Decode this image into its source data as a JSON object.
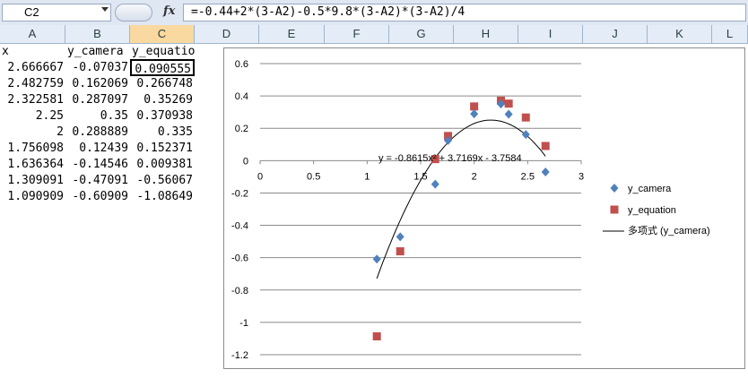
{
  "namebox": {
    "value": "C2"
  },
  "formula": {
    "text": "=-0.44+2*(3-A2)-0.5*9.8*(3-A2)*(3-A2)/4"
  },
  "columns": [
    "A",
    "B",
    "C",
    "D",
    "E",
    "F",
    "G",
    "H",
    "I",
    "J",
    "K",
    "L"
  ],
  "selected_column": "C",
  "headers": [
    "x",
    "y_camera",
    "y_equation"
  ],
  "rows": [
    [
      "2.666667",
      "-0.07037",
      "0.090555"
    ],
    [
      "2.482759",
      "0.162069",
      "0.266748"
    ],
    [
      "2.322581",
      "0.287097",
      "0.35269"
    ],
    [
      "2.25",
      "0.35",
      "0.370938"
    ],
    [
      "2",
      "0.288889",
      "0.335"
    ],
    [
      "1.756098",
      "0.12439",
      "0.152371"
    ],
    [
      "1.636364",
      "-0.14546",
      "0.009381"
    ],
    [
      "1.309091",
      "-0.47091",
      "-0.56067"
    ],
    [
      "1.090909",
      "-0.60909",
      "-1.08649"
    ]
  ],
  "chart_data": {
    "type": "scatter",
    "xlim": [
      0,
      3
    ],
    "ylim": [
      -1.2,
      0.6
    ],
    "xticks": [
      "0",
      "0.5",
      "1",
      "1.5",
      "2",
      "2.5",
      "3"
    ],
    "yticks": [
      "0.6",
      "0.4",
      "0.2",
      "0",
      "-0.2",
      "-0.4",
      "-0.6",
      "-0.8",
      "-1",
      "-1.2"
    ],
    "grid": true,
    "legend_position": "right",
    "series": [
      {
        "name": "y_camera",
        "color": "#4f81bd",
        "marker": "diamond",
        "x": [
          2.666667,
          2.482759,
          2.322581,
          2.25,
          2,
          1.756098,
          1.636364,
          1.309091,
          1.090909
        ],
        "y": [
          -0.07037,
          0.162069,
          0.287097,
          0.35,
          0.288889,
          0.12439,
          -0.14546,
          -0.47091,
          -0.60909
        ]
      },
      {
        "name": "y_equation",
        "color": "#c0504d",
        "marker": "square",
        "x": [
          2.666667,
          2.482759,
          2.322581,
          2.25,
          2,
          1.756098,
          1.636364,
          1.309091,
          1.090909
        ],
        "y": [
          0.090555,
          0.266748,
          0.35269,
          0.370938,
          0.335,
          0.152371,
          0.009381,
          -0.56067,
          -1.08649
        ]
      }
    ],
    "trendline": {
      "name": "多项式 (y_camera)",
      "color": "#000000",
      "a": -0.8615,
      "b": 3.7169,
      "c": -3.7584,
      "x_range": [
        1.090909,
        2.666667
      ],
      "equation_label": "y = -0.8615x² + 3.7169x - 3.7584"
    }
  }
}
